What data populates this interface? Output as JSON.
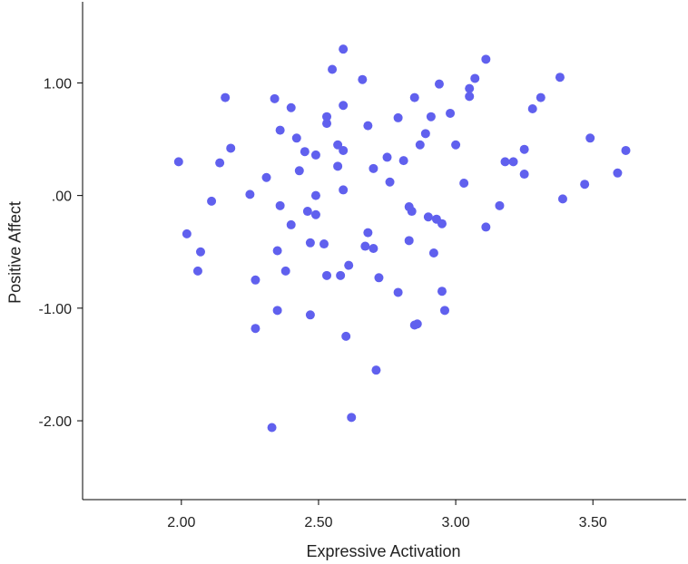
{
  "chart_data": {
    "type": "scatter",
    "xlabel": "Expressive Activation",
    "ylabel": "Positive Affect",
    "xlim": [
      1.64,
      3.84
    ],
    "ylim": [
      -2.7,
      1.72
    ],
    "x_ticks": [
      {
        "value": 2.0,
        "label": "2.00"
      },
      {
        "value": 2.5,
        "label": "2.50"
      },
      {
        "value": 3.0,
        "label": "3.00"
      },
      {
        "value": 3.5,
        "label": "3.50"
      }
    ],
    "y_ticks": [
      {
        "value": 1.0,
        "label": "1.00"
      },
      {
        "value": 0.0,
        "label": ".00"
      },
      {
        "value": -1.0,
        "label": "-1.00"
      },
      {
        "value": -2.0,
        "label": "-2.00"
      }
    ],
    "marker_color": "#6060ee",
    "axis_color": "#000000",
    "grid": false,
    "points": [
      {
        "x": 1.99,
        "y": 0.3
      },
      {
        "x": 2.02,
        "y": -0.34
      },
      {
        "x": 2.06,
        "y": -0.67
      },
      {
        "x": 2.07,
        "y": -0.5
      },
      {
        "x": 2.11,
        "y": -0.05
      },
      {
        "x": 2.14,
        "y": 0.29
      },
      {
        "x": 2.16,
        "y": 0.87
      },
      {
        "x": 2.18,
        "y": 0.42
      },
      {
        "x": 2.25,
        "y": 0.01
      },
      {
        "x": 2.27,
        "y": -0.75
      },
      {
        "x": 2.27,
        "y": -1.18
      },
      {
        "x": 2.31,
        "y": 0.16
      },
      {
        "x": 2.33,
        "y": -2.06
      },
      {
        "x": 2.34,
        "y": 0.86
      },
      {
        "x": 2.35,
        "y": -0.49
      },
      {
        "x": 2.35,
        "y": -1.02
      },
      {
        "x": 2.36,
        "y": 0.58
      },
      {
        "x": 2.36,
        "y": -0.09
      },
      {
        "x": 2.38,
        "y": -0.67
      },
      {
        "x": 2.4,
        "y": 0.78
      },
      {
        "x": 2.4,
        "y": -0.26
      },
      {
        "x": 2.42,
        "y": 0.51
      },
      {
        "x": 2.43,
        "y": 0.22
      },
      {
        "x": 2.45,
        "y": 0.39
      },
      {
        "x": 2.46,
        "y": -0.14
      },
      {
        "x": 2.47,
        "y": -0.42
      },
      {
        "x": 2.47,
        "y": -1.06
      },
      {
        "x": 2.49,
        "y": 0.36
      },
      {
        "x": 2.49,
        "y": 0.0
      },
      {
        "x": 2.49,
        "y": -0.17
      },
      {
        "x": 2.52,
        "y": -0.43
      },
      {
        "x": 2.53,
        "y": 0.7
      },
      {
        "x": 2.53,
        "y": 0.64
      },
      {
        "x": 2.53,
        "y": -0.71
      },
      {
        "x": 2.55,
        "y": 1.12
      },
      {
        "x": 2.57,
        "y": 0.45
      },
      {
        "x": 2.57,
        "y": 0.26
      },
      {
        "x": 2.58,
        "y": -0.71
      },
      {
        "x": 2.59,
        "y": 1.3
      },
      {
        "x": 2.59,
        "y": 0.8
      },
      {
        "x": 2.59,
        "y": 0.4
      },
      {
        "x": 2.59,
        "y": 0.05
      },
      {
        "x": 2.6,
        "y": -1.25
      },
      {
        "x": 2.61,
        "y": -0.62
      },
      {
        "x": 2.62,
        "y": -1.97
      },
      {
        "x": 2.66,
        "y": 1.03
      },
      {
        "x": 2.68,
        "y": 0.62
      },
      {
        "x": 2.67,
        "y": -0.45
      },
      {
        "x": 2.68,
        "y": -0.33
      },
      {
        "x": 2.7,
        "y": 0.24
      },
      {
        "x": 2.7,
        "y": -0.47
      },
      {
        "x": 2.71,
        "y": -1.55
      },
      {
        "x": 2.72,
        "y": -0.73
      },
      {
        "x": 2.75,
        "y": 0.34
      },
      {
        "x": 2.76,
        "y": 0.12
      },
      {
        "x": 2.79,
        "y": 0.69
      },
      {
        "x": 2.79,
        "y": -0.86
      },
      {
        "x": 2.81,
        "y": 0.31
      },
      {
        "x": 2.83,
        "y": -0.1
      },
      {
        "x": 2.84,
        "y": -0.14
      },
      {
        "x": 2.83,
        "y": -0.4
      },
      {
        "x": 2.85,
        "y": 0.87
      },
      {
        "x": 2.85,
        "y": -1.15
      },
      {
        "x": 2.86,
        "y": -1.14
      },
      {
        "x": 2.87,
        "y": 0.45
      },
      {
        "x": 2.89,
        "y": 0.55
      },
      {
        "x": 2.9,
        "y": -0.19
      },
      {
        "x": 2.91,
        "y": 0.7
      },
      {
        "x": 2.93,
        "y": -0.21
      },
      {
        "x": 2.92,
        "y": -0.51
      },
      {
        "x": 2.94,
        "y": 0.99
      },
      {
        "x": 2.95,
        "y": -0.25
      },
      {
        "x": 2.95,
        "y": -0.85
      },
      {
        "x": 2.96,
        "y": -1.02
      },
      {
        "x": 2.98,
        "y": 0.73
      },
      {
        "x": 3.0,
        "y": 0.45
      },
      {
        "x": 3.03,
        "y": 0.11
      },
      {
        "x": 3.05,
        "y": 0.95
      },
      {
        "x": 3.05,
        "y": 0.88
      },
      {
        "x": 3.07,
        "y": 1.04
      },
      {
        "x": 3.11,
        "y": 1.21
      },
      {
        "x": 3.11,
        "y": -0.28
      },
      {
        "x": 3.16,
        "y": -0.09
      },
      {
        "x": 3.18,
        "y": 0.3
      },
      {
        "x": 3.21,
        "y": 0.3
      },
      {
        "x": 3.25,
        "y": 0.41
      },
      {
        "x": 3.25,
        "y": 0.19
      },
      {
        "x": 3.28,
        "y": 0.77
      },
      {
        "x": 3.31,
        "y": 0.87
      },
      {
        "x": 3.38,
        "y": 1.05
      },
      {
        "x": 3.39,
        "y": -0.03
      },
      {
        "x": 3.47,
        "y": 0.1
      },
      {
        "x": 3.49,
        "y": 0.51
      },
      {
        "x": 3.59,
        "y": 0.2
      },
      {
        "x": 3.62,
        "y": 0.4
      }
    ]
  }
}
